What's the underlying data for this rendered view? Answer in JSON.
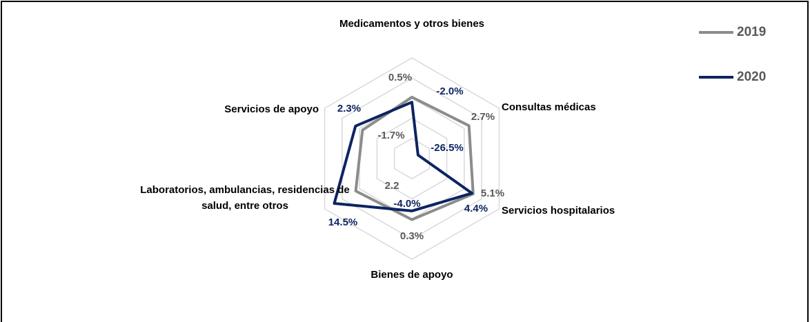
{
  "chart_data": {
    "type": "radar",
    "categories": [
      "Medicamentos y otros bienes",
      "Consultas médicas",
      "Servicios hospitalarios",
      "Bienes de apoyo",
      "Laboratorios, ambulancias, residencias de salud, entre otros",
      "Servicios de apoyo"
    ],
    "series": [
      {
        "name": "2019",
        "color": "#8c8c8c",
        "values": [
          0.5,
          2.7,
          5.1,
          0.3,
          2.2,
          -1.7
        ],
        "value_labels": [
          "0.5%",
          "2.7%",
          "5.1%",
          "0.3%",
          "2.2",
          "-1.7%"
        ]
      },
      {
        "name": "2020",
        "color": "#0c2461",
        "values": [
          -2.0,
          -26.5,
          4.4,
          -4.0,
          14.5,
          2.3
        ],
        "value_labels": [
          "-2.0%",
          "-26.5%",
          "4.4%",
          "-4.0%",
          "14.5%",
          "2.3%"
        ]
      }
    ],
    "rlim": [
      -30,
      20
    ],
    "rticks": [
      -30,
      -20,
      -10,
      0,
      10,
      20
    ],
    "grid": true,
    "legend": "top-right"
  }
}
